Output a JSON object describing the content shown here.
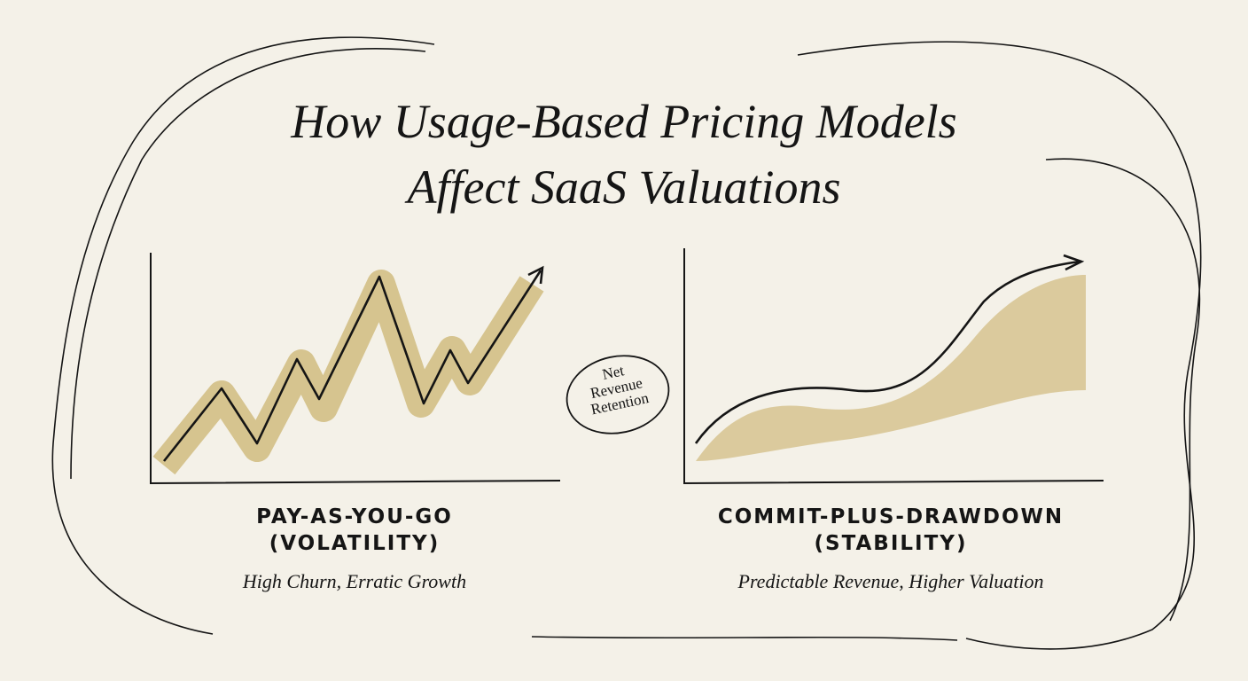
{
  "title": {
    "line1": "How Usage-Based Pricing Models",
    "line2": "Affect SaaS Valuations"
  },
  "left": {
    "label1": "PAY-AS-YOU-GO",
    "label2": "(VOLATILITY)",
    "caption": "High Churn, Erratic Growth"
  },
  "right": {
    "label1": "COMMIT-PLUS-DRAWDOWN",
    "label2": "(STABILITY)",
    "caption": "Predictable Revenue, Higher Valuation"
  },
  "badge": {
    "line1": "Net",
    "line2": "Revenue",
    "line3": "Retention"
  },
  "colors": {
    "background": "#f4f1e8",
    "wash": "#c9b06a",
    "ink": "#151515"
  }
}
